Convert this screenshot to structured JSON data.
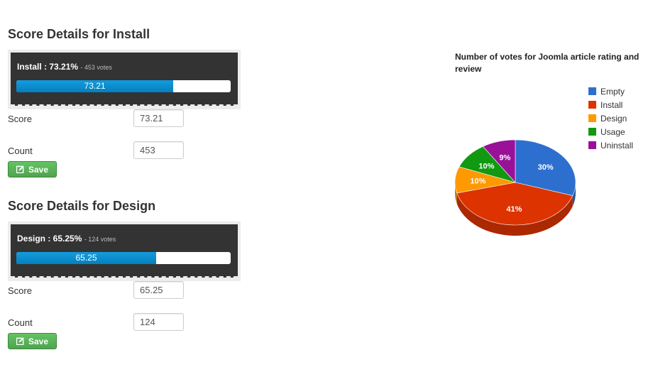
{
  "sections": [
    {
      "title": "Score Details for Install",
      "rating_label": "Install : 73.21%",
      "votes_text": "- 453 votes",
      "progress_percent": 73.21,
      "progress_text": "73.21",
      "score_label": "Score",
      "score_value": "73.21",
      "count_label": "Count",
      "count_value": "453",
      "save_label": "Save"
    },
    {
      "title": "Score Details for Design",
      "rating_label": "Design : 65.25%",
      "votes_text": "- 124 votes",
      "progress_percent": 65.25,
      "progress_text": "65.25",
      "score_label": "Score",
      "score_value": "65.25",
      "count_label": "Count",
      "count_value": "124",
      "save_label": "Save"
    }
  ],
  "chart_data": {
    "type": "pie",
    "title": "Number of votes for Joomla article rating and review",
    "legend_position": "right",
    "slices": [
      {
        "name": "Empty",
        "value": 30,
        "label": "30%",
        "color": "#2d6fcf"
      },
      {
        "name": "Install",
        "value": 41,
        "label": "41%",
        "color": "#dd3300"
      },
      {
        "name": "Design",
        "value": 10,
        "label": "10%",
        "color": "#ff9900"
      },
      {
        "name": "Usage",
        "value": 10,
        "label": "10%",
        "color": "#119911"
      },
      {
        "name": "Uninstall",
        "value": 9,
        "label": "9%",
        "color": "#991199"
      }
    ]
  }
}
